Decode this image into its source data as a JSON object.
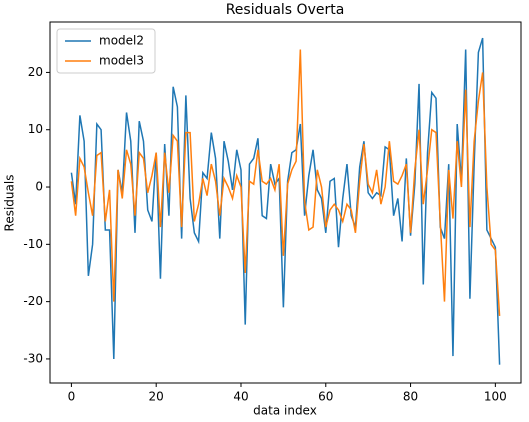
{
  "chart_data": {
    "type": "line",
    "title": "Residuals Overta",
    "xlabel": "data index",
    "ylabel": "Residuals",
    "x": [
      0,
      1,
      2,
      3,
      4,
      5,
      6,
      7,
      8,
      9,
      10,
      11,
      12,
      13,
      14,
      15,
      16,
      17,
      18,
      19,
      20,
      21,
      22,
      23,
      24,
      25,
      26,
      27,
      28,
      29,
      30,
      31,
      32,
      33,
      34,
      35,
      36,
      37,
      38,
      39,
      40,
      41,
      42,
      43,
      44,
      45,
      46,
      47,
      48,
      49,
      50,
      51,
      52,
      53,
      54,
      55,
      56,
      57,
      58,
      59,
      60,
      61,
      62,
      63,
      64,
      65,
      66,
      67,
      68,
      69,
      70,
      71,
      72,
      73,
      74,
      75,
      76,
      77,
      78,
      79,
      80,
      81,
      82,
      83,
      84,
      85,
      86,
      87,
      88,
      89,
      90,
      91,
      92,
      93,
      94,
      95,
      96,
      97,
      98,
      99,
      100,
      101
    ],
    "series": [
      {
        "name": "model2",
        "color": "#1f77b4",
        "values": [
          2.5,
          -3,
          12.5,
          8,
          -15.5,
          -10,
          11,
          10,
          -7.5,
          -7.5,
          -30,
          3,
          -1,
          13,
          8,
          -8,
          11.5,
          8,
          -4,
          -6,
          6,
          -16,
          7.5,
          -5,
          17.5,
          14,
          -9,
          16,
          -2,
          -8,
          -9.5,
          2.5,
          1.5,
          9.5,
          5,
          -9,
          8,
          4.5,
          -0.5,
          6.5,
          3,
          -24,
          4,
          5,
          8.5,
          -5,
          -5.5,
          4,
          0.5,
          1.5,
          -21,
          1,
          6,
          6.5,
          11,
          -5,
          2,
          6.5,
          -0.5,
          -2,
          -8,
          1,
          1.5,
          -10.5,
          -2,
          4,
          -5,
          -7,
          3.5,
          8,
          -1,
          -2,
          -1,
          -1.5,
          7,
          6.5,
          -5,
          -2,
          -9.5,
          5,
          -8.5,
          0.5,
          18,
          -17,
          6,
          16.5,
          15.5,
          -7,
          -9,
          4,
          -29.5,
          11,
          1,
          24,
          -19.5,
          4,
          23.5,
          26,
          -7.5,
          -9,
          -10.5,
          -31
        ]
      },
      {
        "name": "model3",
        "color": "#ff7f0e",
        "values": [
          1,
          -5,
          5,
          3.5,
          -1,
          -5,
          5.5,
          6,
          -6,
          -0.5,
          -20,
          3,
          -2,
          6.5,
          4,
          -5,
          6,
          5,
          -1,
          2,
          6,
          -7,
          6,
          -1,
          9,
          8,
          -7,
          9.5,
          9.5,
          -6,
          -3,
          1.5,
          -1.5,
          4,
          1,
          -5,
          1.5,
          0,
          -2,
          2,
          0,
          -15,
          1,
          0.5,
          6.5,
          1,
          0.5,
          1.5,
          -0.5,
          4,
          -12,
          0.5,
          3,
          4.5,
          24,
          -2.5,
          -7.5,
          -7,
          3,
          0,
          -7,
          -4,
          -3,
          -4,
          -6,
          -3,
          -4,
          -8,
          1,
          7.5,
          0.5,
          -1,
          3,
          -3,
          0,
          8,
          1,
          0.5,
          2,
          4,
          -8,
          3,
          10,
          -3,
          3,
          10,
          9.5,
          -6,
          -20,
          3,
          -5.5,
          8,
          0,
          17,
          -7,
          8,
          15,
          20,
          0,
          -10,
          -11,
          -22.5
        ]
      }
    ],
    "xlim": [
      -5.05,
      106.05
    ],
    "xticks": [
      0,
      20,
      40,
      60,
      80,
      100
    ],
    "ylim": [
      -34.2,
      28.8
    ],
    "yticks": [
      -30,
      -20,
      -10,
      0,
      10,
      20
    ],
    "legend": "upper left"
  }
}
